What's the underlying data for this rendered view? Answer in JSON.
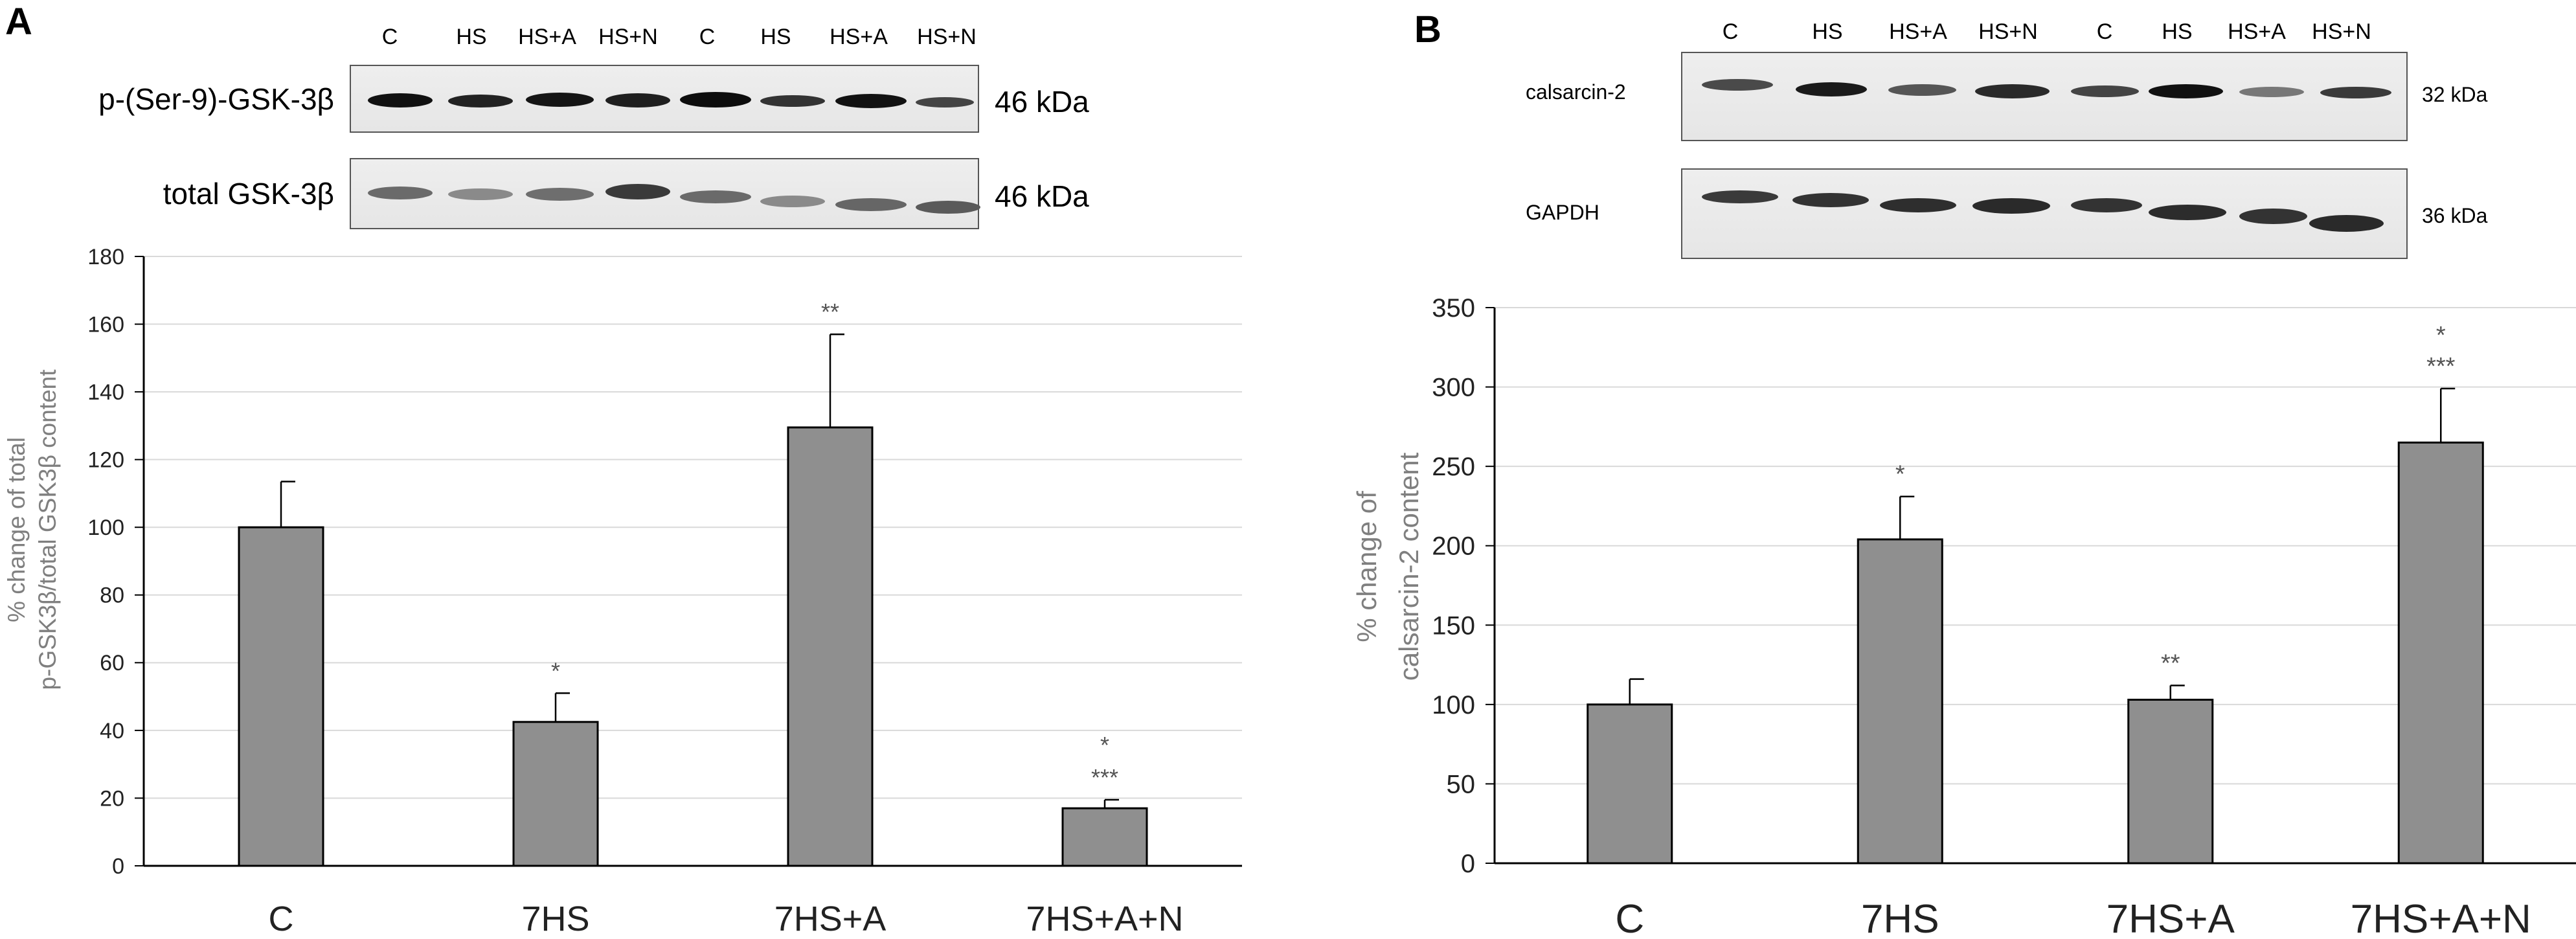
{
  "panels": [
    {
      "letter": "A",
      "lane_labels": [
        "C",
        "HS",
        "HS+A",
        "HS+N",
        "C",
        "HS",
        "HS+A",
        "HS+N"
      ],
      "blots": [
        {
          "protein": "p-(Ser-9)-GSK-3β",
          "kda": "46 kDa"
        },
        {
          "protein": "total GSK-3β",
          "kda": "46 kDa"
        }
      ]
    },
    {
      "letter": "B",
      "lane_labels": [
        "C",
        "HS",
        "HS+A",
        "HS+N",
        "C",
        "HS",
        "HS+A",
        "HS+N"
      ],
      "blots": [
        {
          "protein": "calsarcin-2",
          "kda": "32 kDa"
        },
        {
          "protein": "GAPDH",
          "kda": "36 kDa"
        }
      ]
    }
  ],
  "chart_data": [
    {
      "type": "bar",
      "panel": "A",
      "categories": [
        "C",
        "7HS",
        "7HS+A",
        "7HS+A+N"
      ],
      "values": [
        100,
        42.5,
        129.5,
        17
      ],
      "errors": [
        13.5,
        8.5,
        27.5,
        2.5
      ],
      "significance": [
        [],
        [
          "*"
        ],
        [
          "**"
        ],
        [
          "*",
          "***"
        ]
      ],
      "ylabel_lines": [
        "% change  of total",
        "p-GSK3β/total GSK3β content"
      ],
      "ylim": [
        0,
        180
      ],
      "yticks": [
        0,
        20,
        40,
        60,
        80,
        100,
        120,
        140,
        160,
        180
      ],
      "grid": true,
      "bar_color": "#8f8f8f"
    },
    {
      "type": "bar",
      "panel": "B",
      "categories": [
        "C",
        "7HS",
        "7HS+A",
        "7HS+A+N"
      ],
      "values": [
        100,
        204,
        103,
        265
      ],
      "errors": [
        16,
        27,
        9,
        34
      ],
      "significance": [
        [],
        [
          "*"
        ],
        [
          "**"
        ],
        [
          "*",
          "***"
        ]
      ],
      "ylabel_lines": [
        "% change  of",
        "calsarcin-2 content"
      ],
      "ylim": [
        0,
        350
      ],
      "yticks": [
        0,
        50,
        100,
        150,
        200,
        250,
        300,
        350
      ],
      "grid": true,
      "bar_color": "#8f8f8f"
    }
  ]
}
